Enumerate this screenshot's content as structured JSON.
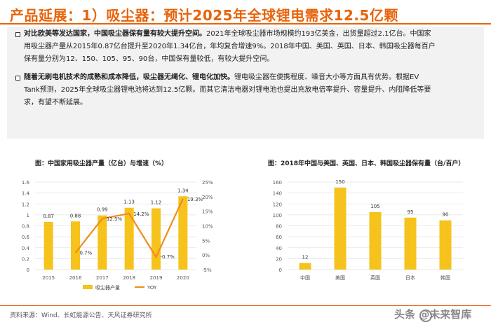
{
  "title": "产品延展：1）吸尘器：预计2025年全球锂电需求12.5亿颗",
  "paragraphs": [
    {
      "bold": "对比欧美等发达国家，中国吸尘器保有量有较大提升空间。",
      "lines": [
        "2021年全球吸尘器市场规模约193亿美金，出货量超过2.1亿台。中国家",
        "用吸尘器产量从2015年0.87亿台提升至2020年1.34亿台，年均复合增速9%。2018年中国、美国、英国、日本、韩国吸尘器每百户",
        "保有量分别为12、150、105、95、90台，中国保有量较低，有较大提升空间。"
      ]
    },
    {
      "bold": "随着无刷电机技术的成熟和成本降低，吸尘器无绳化、锂电化加快。",
      "lines": [
        "锂电吸尘器在便携程度、噪音大小等方面具有优势。根据EV",
        "Tank预测，2025年全球吸尘器锂电池将达到12.5亿颗。而其它清洁电器对锂电池也提出充放电倍率提升、容量提升、内阻降低等要",
        "求，有望不断延展。"
      ]
    }
  ],
  "chart_data": [
    {
      "type": "bar",
      "title": "图：中国家用吸尘器产量（亿台）与增速（%）",
      "categories": [
        "2015",
        "2016",
        "2017",
        "2018",
        "2019",
        "2020"
      ],
      "series": [
        {
          "name": "吸尘器产量",
          "axis": "left",
          "values": [
            0.87,
            0.88,
            0.99,
            1.13,
            1.12,
            1.34
          ],
          "labels": [
            "0.87",
            "0.88",
            "0.99",
            "1.13",
            "1.12",
            "1.34"
          ]
        },
        {
          "name": "YOY",
          "axis": "right",
          "type": "line",
          "values": [
            null,
            0.7,
            12.5,
            14.2,
            -0.7,
            19.3
          ],
          "labels": [
            "",
            "0.7%",
            "12.5%",
            "14.2%",
            "-0.7%",
            "19.3%"
          ]
        }
      ],
      "ylim": [
        0,
        1.6
      ],
      "yticks": [
        "0",
        "0.2",
        "0.4",
        "0.6",
        "0.8",
        "1",
        "1.2",
        "1.4",
        "1.6"
      ],
      "y2lim": [
        -5,
        25
      ],
      "y2ticks": [
        "-5%",
        "0%",
        "5%",
        "10%",
        "15%",
        "20%",
        "25%"
      ],
      "legend": "bottom",
      "colors": {
        "bar": "#f6c21c",
        "line": "#f08c1e",
        "grid": "#e3e3e3"
      }
    },
    {
      "type": "bar",
      "title": "图：2018年中国与美国、英国、日本、韩国吸尘器保有量（台/百户）",
      "categories": [
        "中国",
        "美国",
        "英国",
        "日本",
        "韩国"
      ],
      "values": [
        12,
        150,
        105,
        95,
        90
      ],
      "labels": [
        "12",
        "150",
        "105",
        "95",
        "90"
      ],
      "ylim": [
        0,
        160
      ],
      "yticks": [
        "0",
        "20",
        "40",
        "60",
        "80",
        "100",
        "120",
        "140",
        "160"
      ],
      "colors": {
        "bar": "#f6c21c",
        "grid": "#e3e3e3"
      }
    }
  ],
  "footer": {
    "source": "资料来源：Wind、长虹能源公告、天风证券研究所",
    "watermark": "头条 @未来智库"
  }
}
